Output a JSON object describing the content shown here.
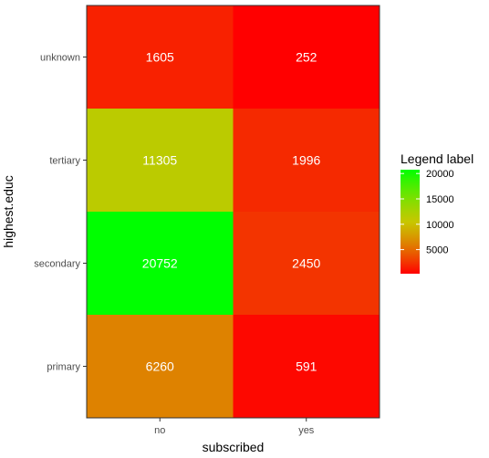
{
  "chart_data": {
    "type": "heatmap",
    "xlabel": "subscribed",
    "ylabel": "highest.educ",
    "x_categories": [
      "no",
      "yes"
    ],
    "y_categories": [
      "unknown",
      "tertiary",
      "secondary",
      "primary"
    ],
    "values": [
      [
        1605,
        252
      ],
      [
        11305,
        1996
      ],
      [
        20752,
        2450
      ],
      [
        6260,
        591
      ]
    ],
    "legend": {
      "title": "Legend label",
      "ticks": [
        5000,
        10000,
        15000,
        20000
      ],
      "range": [
        252,
        20752
      ],
      "low_color": "#ff0000",
      "high_color": "#00ff00",
      "placement": "right"
    },
    "grid": false
  }
}
